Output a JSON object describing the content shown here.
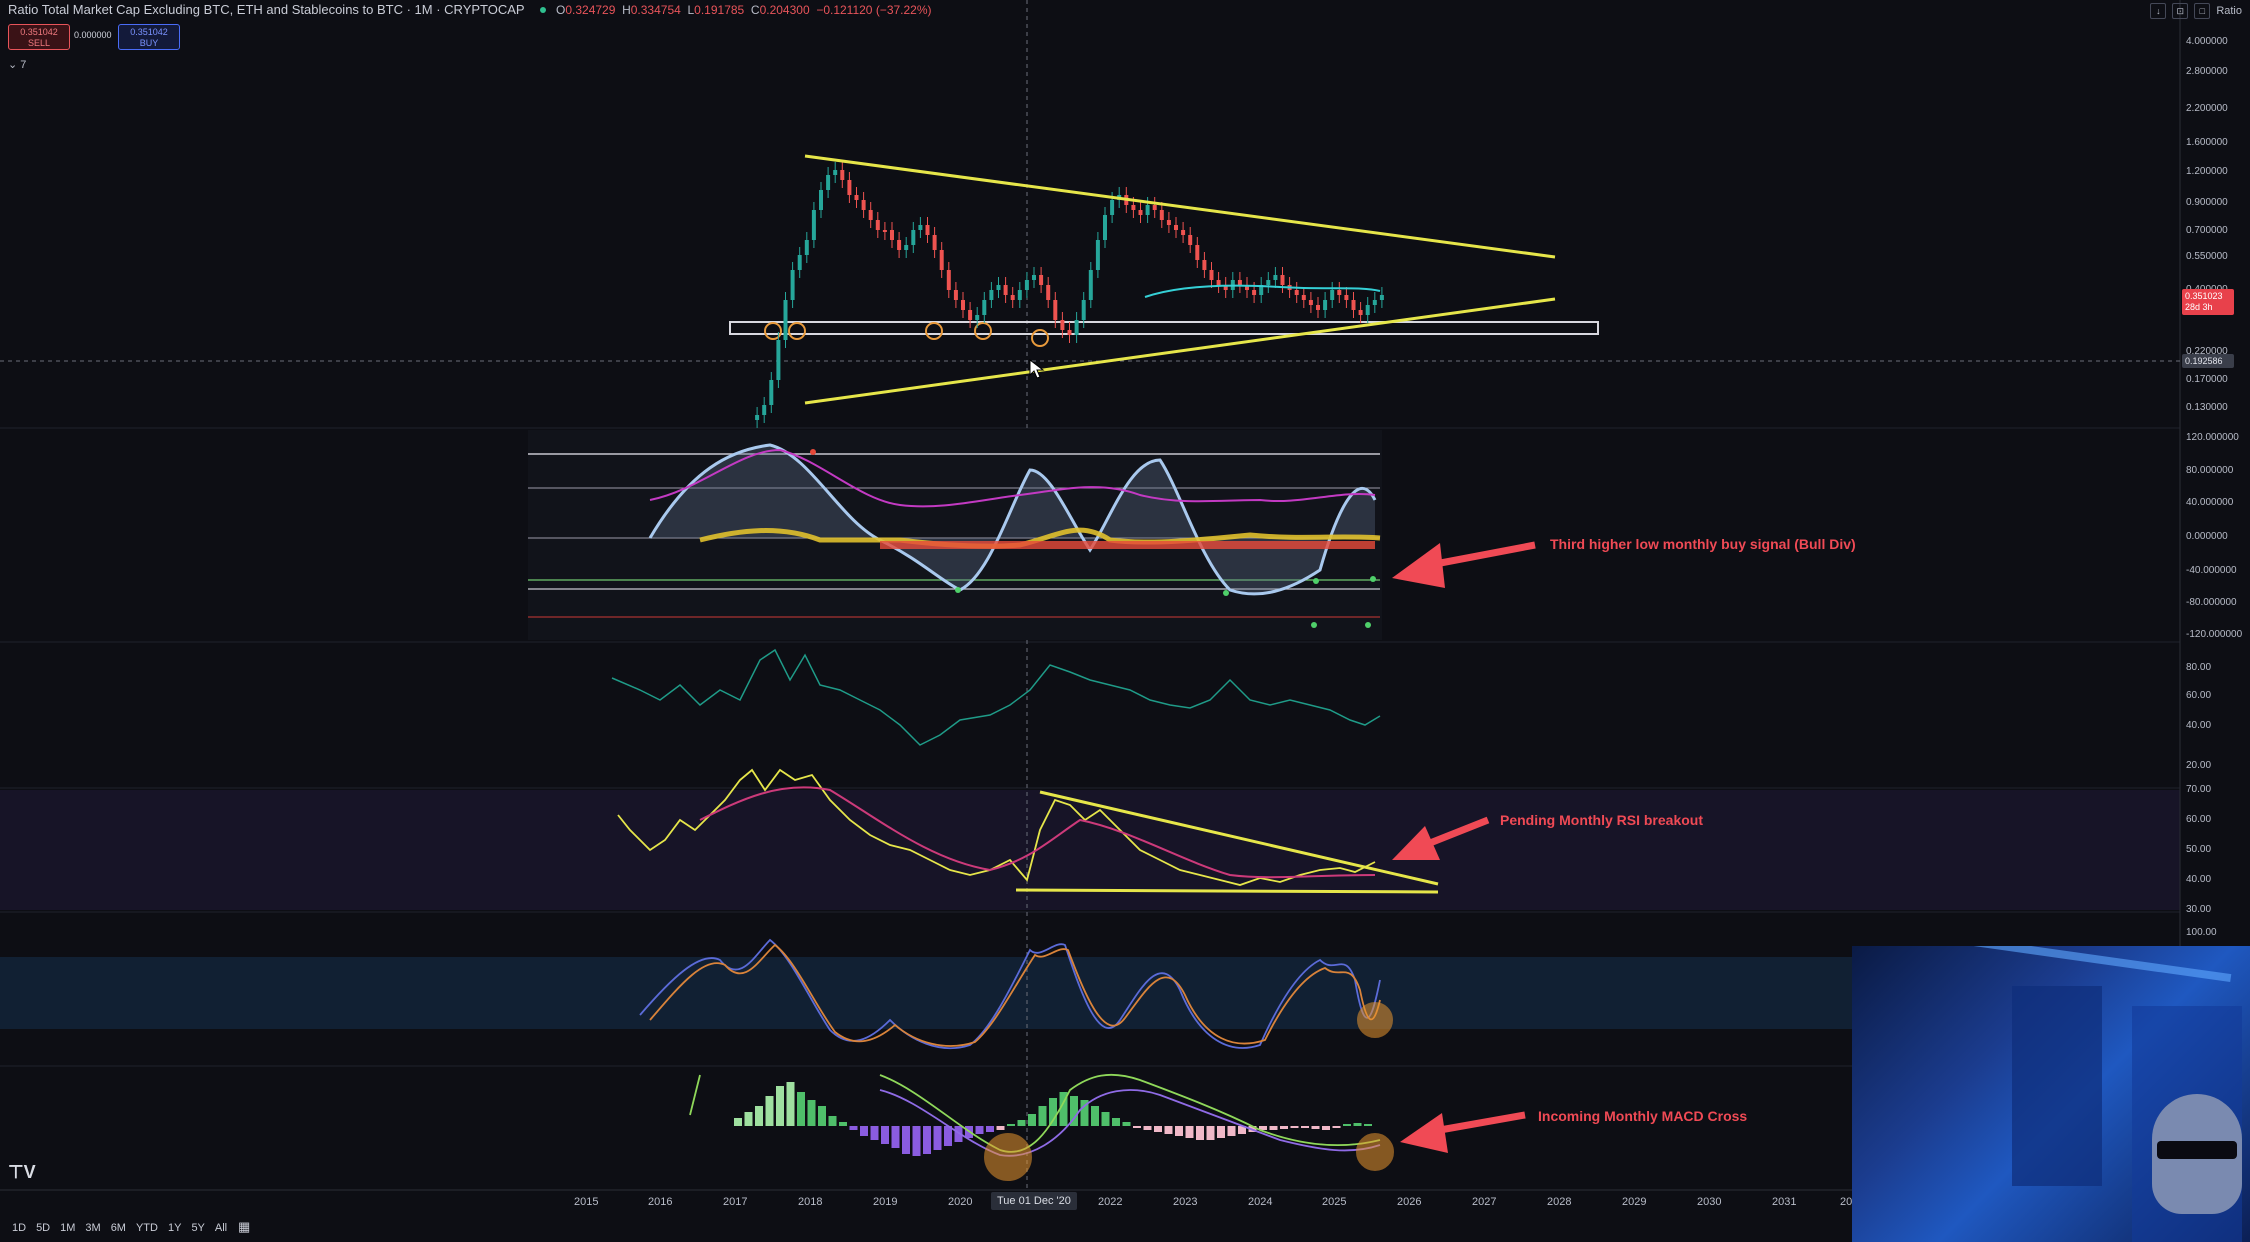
{
  "header": {
    "title": "Ratio Total Market Cap Excluding BTC, ETH and Stablecoins to BTC · 1M · CRYPTOCAP",
    "ohlc": [
      {
        "k": "O",
        "v": "0.324729"
      },
      {
        "k": "H",
        "v": "0.334754"
      },
      {
        "k": "L",
        "v": "0.191785"
      },
      {
        "k": "C",
        "v": "0.204300"
      },
      {
        "k": "",
        "v": "−0.121120 (−37.22%)"
      }
    ],
    "sell_price": "0.351042",
    "sell_label": "SELL",
    "spread": "0.000000",
    "buy_price": "0.351042",
    "buy_label": "BUY",
    "indicators_collapsed": "7",
    "scale_label": "Ratio"
  },
  "price_axis": [
    "4.000000",
    "2.800000",
    "2.200000",
    "1.600000",
    "1.200000",
    "0.900000",
    "0.700000",
    "0.550000",
    "0.400000",
    "0.220000",
    "0.170000",
    "0.130000"
  ],
  "price_tag": {
    "value": "0.351023",
    "sub": "28d 3h",
    "color": "#e8414b"
  },
  "crosshair_price": "0.192586",
  "osc1_axis": [
    "120.000000",
    "80.000000",
    "40.000000",
    "0.000000",
    "-40.000000",
    "-80.000000",
    "-120.000000"
  ],
  "osc2_axis": [
    "80.00",
    "60.00",
    "40.00",
    "20.00"
  ],
  "rsi_axis": [
    "70.00",
    "60.00",
    "50.00",
    "40.00",
    "30.00"
  ],
  "stoch_axis": [
    "100.00"
  ],
  "x_axis": [
    "2015",
    "2016",
    "2017",
    "2018",
    "2019",
    "2020",
    "2022",
    "2023",
    "2024",
    "2025",
    "2026",
    "2027",
    "2028",
    "2029",
    "2030",
    "2031",
    "20"
  ],
  "cursor_date": "Tue 01 Dec '20",
  "annotations": {
    "bull_div": "Third higher low monthly buy signal (Bull Div)",
    "rsi": "Pending Monthly RSI breakout",
    "macd": "Incoming Monthly MACD Cross"
  },
  "timeframes": [
    "1D",
    "5D",
    "1M",
    "3M",
    "6M",
    "YTD",
    "1Y",
    "5Y",
    "All"
  ],
  "colors": {
    "bg": "#0d0e14",
    "up": "#26a69a",
    "down": "#ef5350",
    "trend": "#e6e64a",
    "accent": "#f04a55"
  },
  "icons": [
    "tradingview-logo-icon",
    "calendar-range-icon",
    "fullscreen-icon",
    "download-icon",
    "chevron-down-icon"
  ]
}
